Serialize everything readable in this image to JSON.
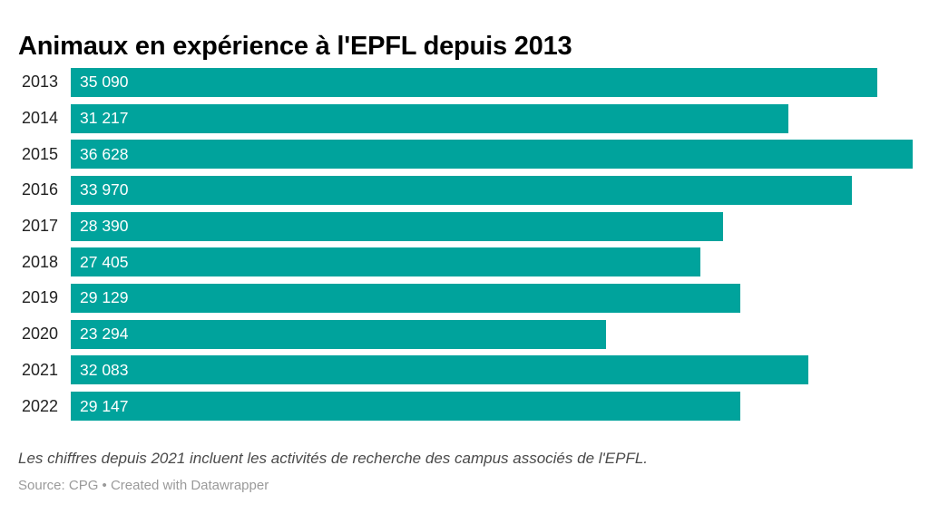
{
  "title": "Animaux en expérience à l'EPFL depuis 2013",
  "colors": {
    "bar": "#00a39c",
    "value_label": "#ffffff",
    "year_label": "#222222",
    "title": "#000000",
    "note": "#4a4a4a",
    "source": "#9a9a9a",
    "background": "#ffffff"
  },
  "chart_data": {
    "type": "bar",
    "orientation": "horizontal",
    "title": "Animaux en expérience à l'EPFL depuis 2013",
    "categories": [
      "2013",
      "2014",
      "2015",
      "2016",
      "2017",
      "2018",
      "2019",
      "2020",
      "2021",
      "2022"
    ],
    "values": [
      35090,
      31217,
      36628,
      33970,
      28390,
      27405,
      29129,
      23294,
      32083,
      29147
    ],
    "value_labels": [
      "35 090",
      "31 217",
      "36 628",
      "33 970",
      "28 390",
      "27 405",
      "29 129",
      "23 294",
      "32 083",
      "29 147"
    ],
    "xlabel": "",
    "ylabel": "",
    "xlim": [
      0,
      36628
    ],
    "grid": false,
    "legend": false,
    "value_label_position": "inside-start"
  },
  "footer": {
    "note": "Les chiffres depuis 2021 incluent les activités de recherche des campus associés de l'EPFL.",
    "source": "Source: CPG • Created with Datawrapper"
  }
}
